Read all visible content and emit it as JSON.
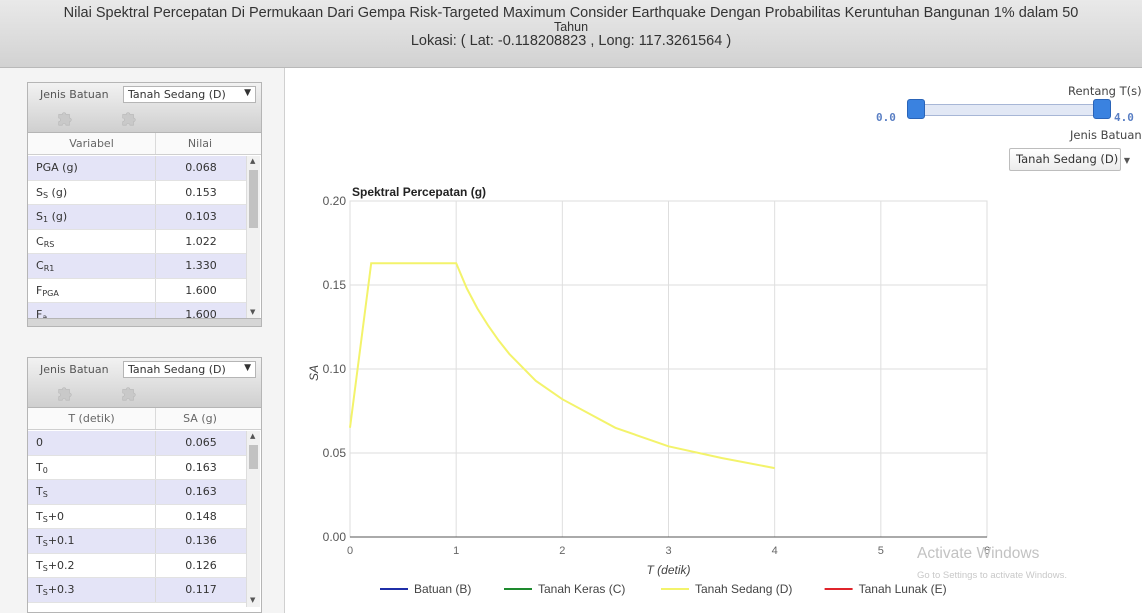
{
  "header": {
    "title_line1": "Nilai Spektral Percepatan Di Permukaan Dari Gempa Risk-Targeted Maximum Consider Earthquake Dengan Probabilitas Keruntuhan Bangunan 1% dalam 50",
    "title_line2": "Tahun",
    "location": "Lokasi: ( Lat: -0.118208823 , Long: 117.3261564 )"
  },
  "panel1": {
    "select_label": "Jenis Batuan",
    "select_value": "Tanah Sedang (D)",
    "select_arrow": "▼",
    "col1": "Variabel",
    "col2": "Nilai",
    "rows": [
      {
        "name": "PGA (g)",
        "value": "0.068"
      },
      {
        "name": "S",
        "sub": "S",
        "tail": " (g)",
        "value": "0.153"
      },
      {
        "name": "S",
        "sub": "1",
        "tail": " (g)",
        "value": "0.103"
      },
      {
        "name": "C",
        "sub": "RS",
        "tail": "",
        "value": "1.022"
      },
      {
        "name": "C",
        "sub": "R1",
        "tail": "",
        "value": "1.330"
      },
      {
        "name": "F",
        "sub": "PGA",
        "tail": "",
        "value": "1.600"
      },
      {
        "name": "F",
        "sub": "a",
        "tail": "",
        "value": "1.600"
      }
    ]
  },
  "panel2": {
    "select_label": "Jenis Batuan",
    "select_value": "Tanah Sedang (D)",
    "select_arrow": "▼",
    "col1": "T (detik)",
    "col2": "SA (g)",
    "rows": [
      {
        "name": "0",
        "sub": "",
        "tail": "",
        "value": "0.065"
      },
      {
        "name": "T",
        "sub": "0",
        "tail": "",
        "value": "0.163"
      },
      {
        "name": "T",
        "sub": "S",
        "tail": "",
        "value": "0.163"
      },
      {
        "name": "T",
        "sub": "S",
        "tail": "+0",
        "value": "0.148"
      },
      {
        "name": "T",
        "sub": "S",
        "tail": "+0.1",
        "value": "0.136"
      },
      {
        "name": "T",
        "sub": "S",
        "tail": "+0.2",
        "value": "0.126"
      },
      {
        "name": "T",
        "sub": "S",
        "tail": "+0.3",
        "value": "0.117"
      }
    ]
  },
  "controls": {
    "range_label": "Rentang T(s)",
    "range_min": "0.0",
    "range_max": "4.0",
    "range_min_value": 0.0,
    "range_max_value": 4.0,
    "range_limit": 4.0,
    "jenis_label": "Jenis Batuan",
    "jenis_value": "Tanah Sedang (D)",
    "jenis_arrow": "▼"
  },
  "colors": {
    "batuan": "#1f2fa8",
    "keras": "#1e8a2e",
    "sedang": "#f3f36b",
    "lunak": "#e0242b",
    "slider": "#3a82e0"
  },
  "chart_data": {
    "type": "line",
    "title": "Spektral Percepatan (g)",
    "xlabel": "T (detik)",
    "ylabel": "SA",
    "xlim": [
      0,
      6
    ],
    "ylim": [
      0,
      0.2
    ],
    "xticks": [
      0,
      1,
      2,
      3,
      4,
      5,
      6
    ],
    "yticks": [
      "0.00",
      "0.05",
      "0.10",
      "0.15",
      "0.20"
    ],
    "grid": true,
    "legend_position": "bottom",
    "series": [
      {
        "name": "Batuan (B)",
        "color": "#1f2fa8",
        "points": []
      },
      {
        "name": "Tanah Keras (C)",
        "color": "#1e8a2e",
        "points": []
      },
      {
        "name": "Tanah Sedang (D)",
        "color": "#f3f36b",
        "points": [
          [
            0,
            0.065
          ],
          [
            0.2,
            0.163
          ],
          [
            1.0,
            0.163
          ],
          [
            1.1,
            0.148
          ],
          [
            1.2,
            0.136
          ],
          [
            1.3,
            0.126
          ],
          [
            1.4,
            0.117
          ],
          [
            1.5,
            0.109
          ],
          [
            1.75,
            0.093
          ],
          [
            2.0,
            0.082
          ],
          [
            2.5,
            0.065
          ],
          [
            3.0,
            0.054
          ],
          [
            3.5,
            0.047
          ],
          [
            4.0,
            0.041
          ]
        ]
      },
      {
        "name": "Tanah Lunak (E)",
        "color": "#e0242b",
        "points": []
      }
    ]
  },
  "watermark": {
    "title": "Activate Windows",
    "subtitle": "Go to Settings to activate Windows."
  }
}
